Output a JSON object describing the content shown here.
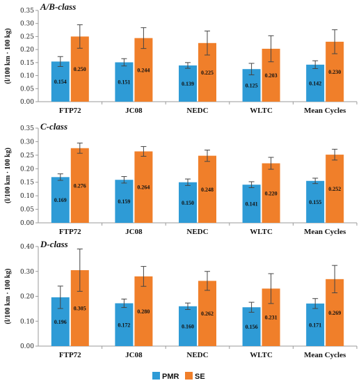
{
  "colors": {
    "pmr": "#2E9BD6",
    "se": "#F07F2A",
    "axis": "#9a9a9a",
    "error": "#444444"
  },
  "legend": {
    "position": "bottom-center",
    "items": [
      "PMR",
      "SE"
    ]
  },
  "chart_data": [
    {
      "type": "bar",
      "title": "A/B-class",
      "ylabel": "(l/100 km · 100 kg)",
      "categories": [
        "FTP72",
        "JC08",
        "NEDC",
        "WLTC",
        "Mean Cycles"
      ],
      "ylim": [
        0,
        0.35
      ],
      "yticks": [
        "0.00",
        "0.05",
        "0.10",
        "0.15",
        "0.20",
        "0.25",
        "0.30",
        "0.35"
      ],
      "grid": false,
      "series": [
        {
          "name": "PMR",
          "values": [
            0.154,
            0.151,
            0.139,
            0.125,
            0.142
          ],
          "labels": [
            "0.154",
            "0.151",
            "0.139",
            "0.125",
            "0.142"
          ],
          "errors": [
            0.019,
            0.014,
            0.011,
            0.022,
            0.015
          ]
        },
        {
          "name": "SE",
          "values": [
            0.25,
            0.244,
            0.225,
            0.203,
            0.23
          ],
          "labels": [
            "0.250",
            "0.244",
            "0.225",
            "0.203",
            "0.230"
          ],
          "errors": [
            0.045,
            0.04,
            0.046,
            0.05,
            0.046
          ]
        }
      ]
    },
    {
      "type": "bar",
      "title": "C-class",
      "ylabel": "(l/100 km · 100 kg)",
      "categories": [
        "FTP72",
        "JC08",
        "NEDC",
        "WLTC",
        "Mean Cycles"
      ],
      "ylim": [
        0,
        0.35
      ],
      "yticks": [
        "0.00",
        "0.05",
        "0.10",
        "0.15",
        "0.20",
        "0.25",
        "0.30",
        "0.35"
      ],
      "grid": false,
      "series": [
        {
          "name": "PMR",
          "values": [
            0.169,
            0.159,
            0.15,
            0.141,
            0.155
          ],
          "labels": [
            "0.169",
            "0.159",
            "0.150",
            "0.141",
            "0.155"
          ],
          "errors": [
            0.012,
            0.012,
            0.012,
            0.011,
            0.01
          ]
        },
        {
          "name": "SE",
          "values": [
            0.276,
            0.264,
            0.248,
            0.22,
            0.252
          ],
          "labels": [
            "0.276",
            "0.264",
            "0.248",
            "0.220",
            "0.252"
          ],
          "errors": [
            0.019,
            0.018,
            0.021,
            0.022,
            0.02
          ]
        }
      ]
    },
    {
      "type": "bar",
      "title": "D-class",
      "ylabel": "(l/100 km · 100 kg)",
      "categories": [
        "FTP72",
        "JC08",
        "NEDC",
        "WLTC",
        "Mean Cycles"
      ],
      "ylim": [
        0,
        0.4
      ],
      "yticks": [
        "0.00",
        "0.10",
        "0.20",
        "0.30",
        "0.40"
      ],
      "grid": false,
      "series": [
        {
          "name": "PMR",
          "values": [
            0.196,
            0.172,
            0.16,
            0.156,
            0.171
          ],
          "labels": [
            "0.196",
            "0.172",
            "0.160",
            "0.156",
            "0.171"
          ],
          "errors": [
            0.045,
            0.017,
            0.013,
            0.02,
            0.02
          ]
        },
        {
          "name": "SE",
          "values": [
            0.305,
            0.28,
            0.262,
            0.231,
            0.269
          ],
          "labels": [
            "0.305",
            "0.280",
            "0.262",
            "0.231",
            "0.269"
          ],
          "errors": [
            0.085,
            0.04,
            0.038,
            0.06,
            0.055
          ]
        }
      ]
    }
  ]
}
